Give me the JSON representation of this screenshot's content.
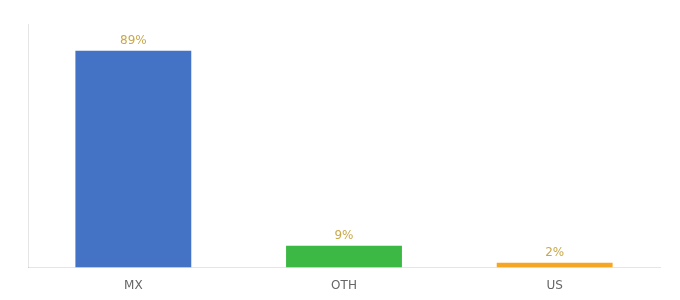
{
  "chart_data": {
    "type": "bar",
    "categories": [
      "MX",
      "OTH",
      "US"
    ],
    "values": [
      89,
      9,
      2
    ],
    "value_labels": [
      "89%",
      "9%",
      "2%"
    ],
    "data_labels": true,
    "colors": [
      "#4472c4",
      "#3cb844",
      "#f5a623"
    ],
    "ylim": [
      0,
      100
    ],
    "tick_labels": "x",
    "grid": false
  }
}
